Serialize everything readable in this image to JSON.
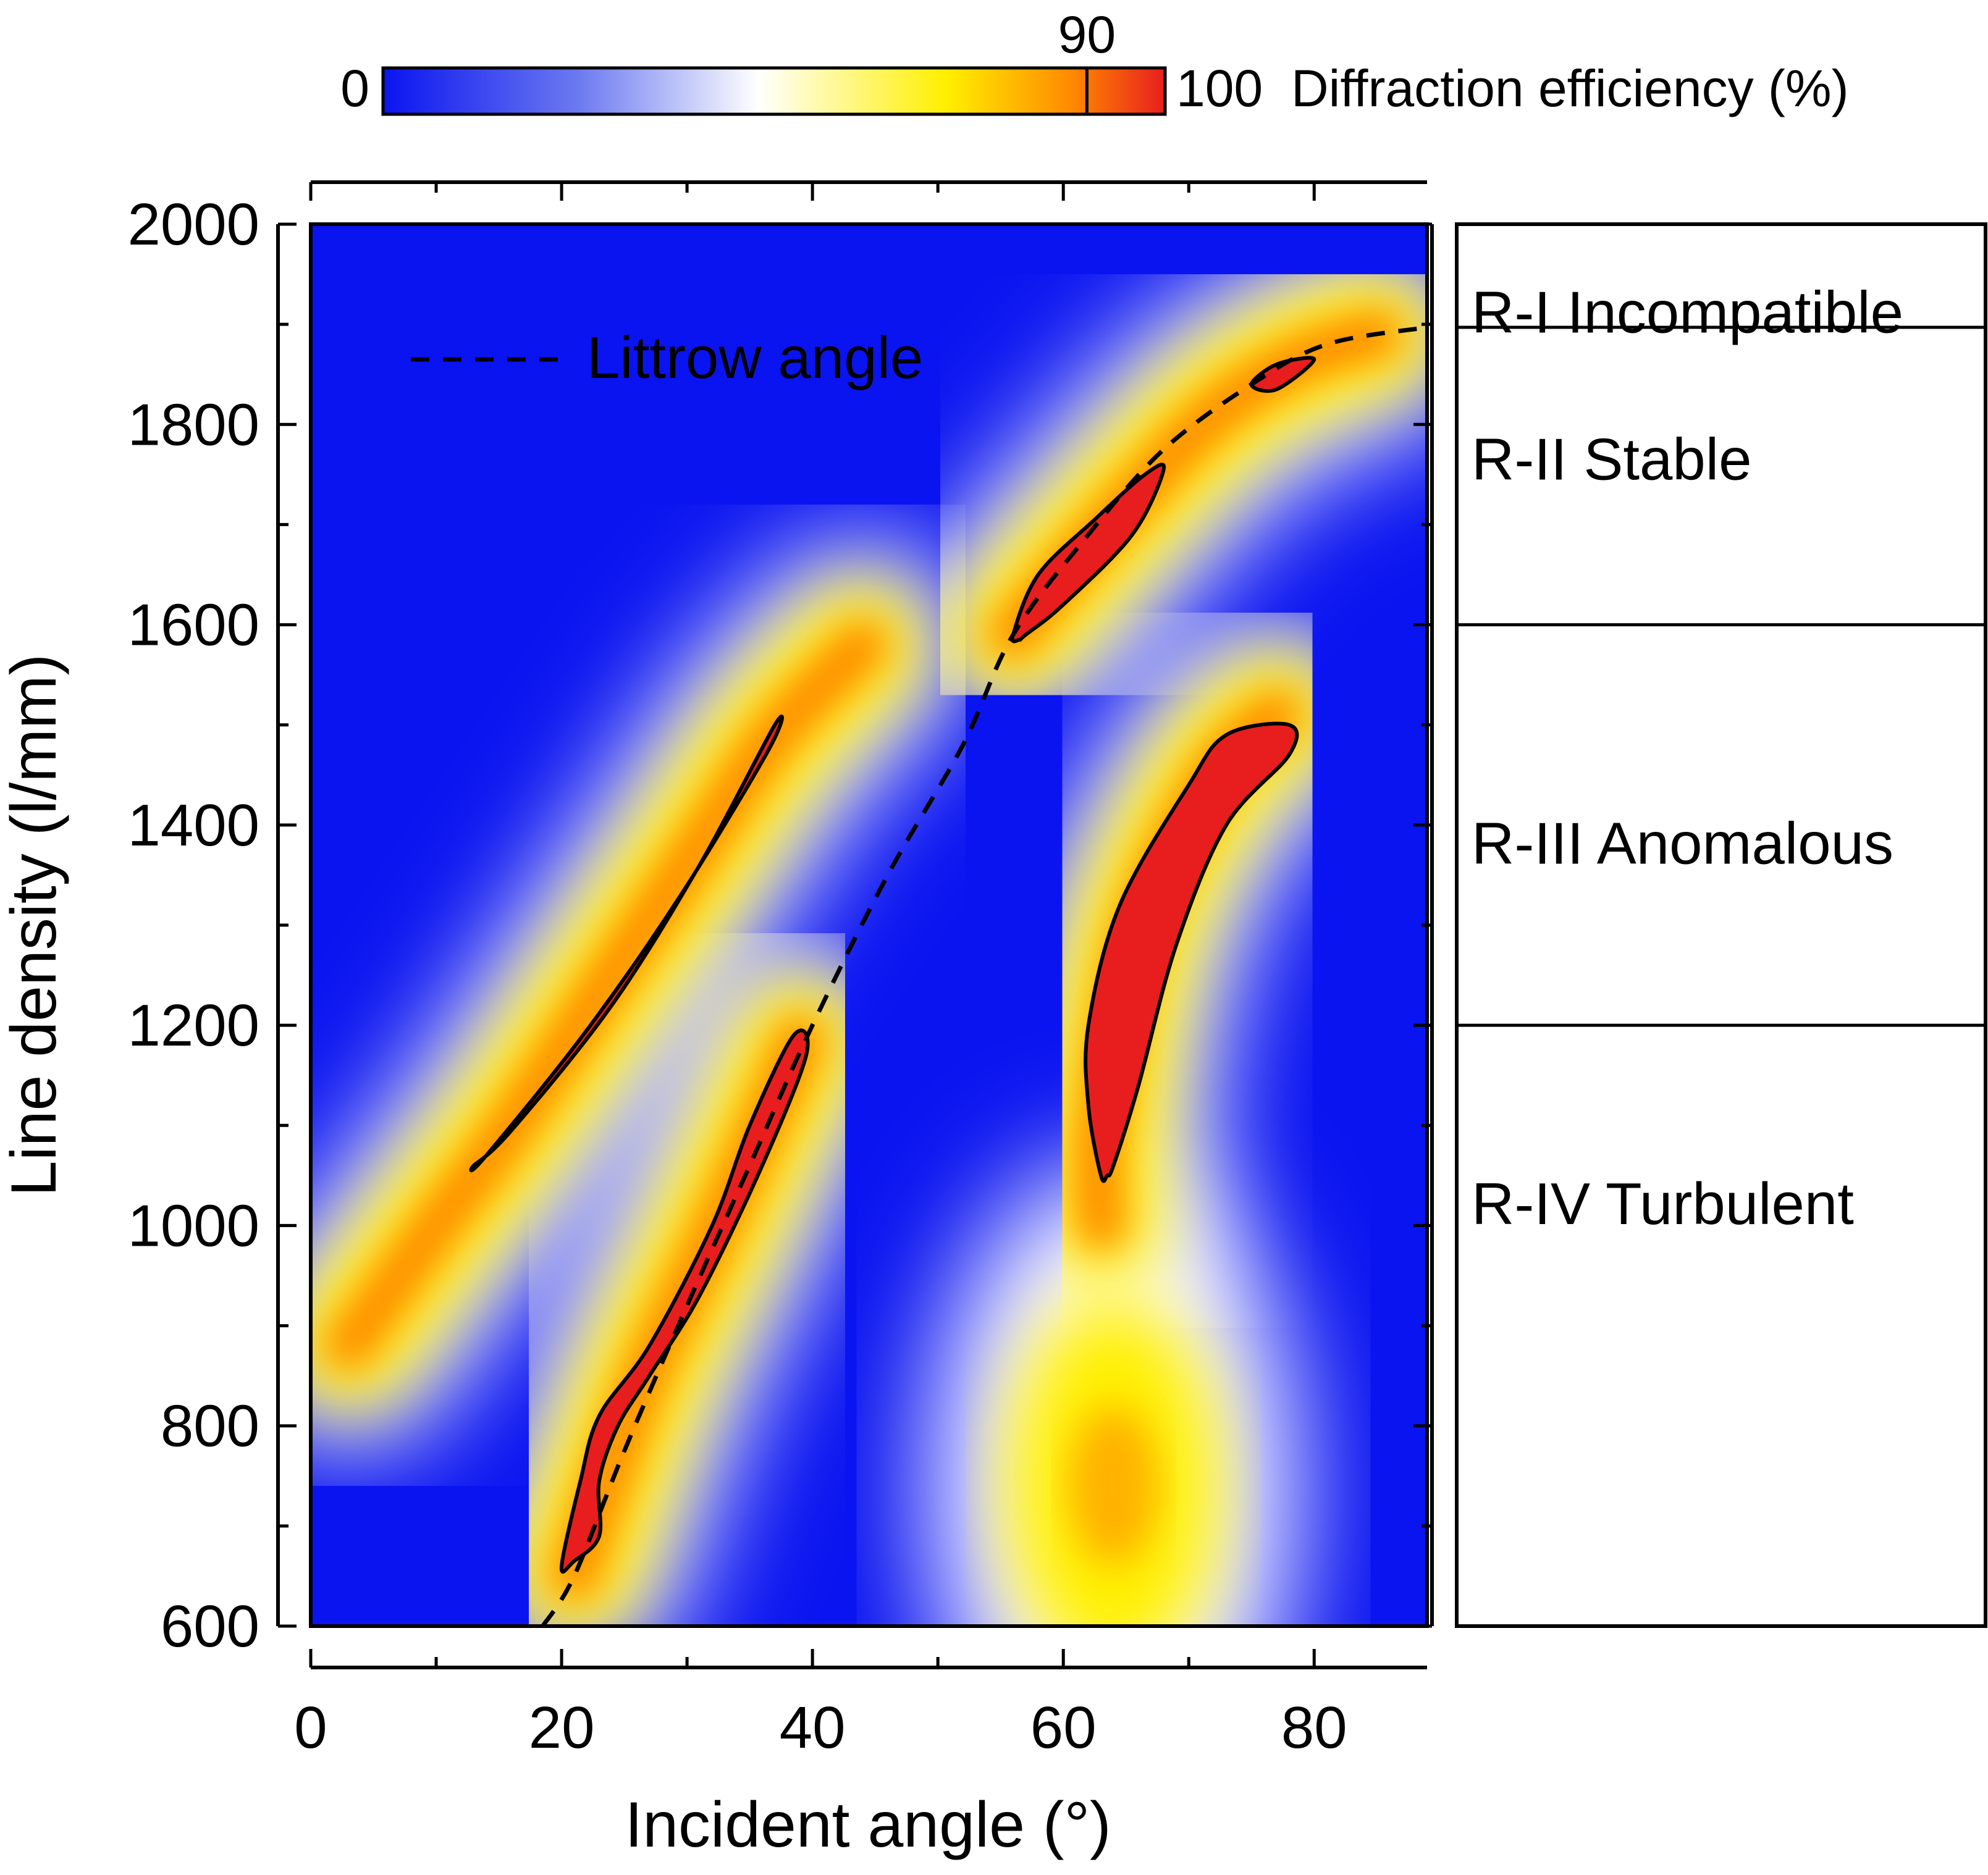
{
  "chart_data": {
    "type": "heatmap",
    "title": "",
    "xlabel": "Incident angle (°)",
    "ylabel": "Line density (l/mm)",
    "xlim": [
      0,
      89
    ],
    "ylim": [
      600,
      2000
    ],
    "x_ticks": [
      0,
      20,
      40,
      60,
      80
    ],
    "x_minor_step": 10,
    "y_ticks": [
      600,
      800,
      1000,
      1200,
      1400,
      1600,
      1800,
      2000
    ],
    "y_minor_step": 100,
    "colorbar": {
      "min_label": "0",
      "max_label": "100",
      "marker_value": 90,
      "marker_label": "90",
      "label": "Diffraction efficiency (%)",
      "stops": [
        {
          "value": 0,
          "color": "#0a14f0"
        },
        {
          "value": 25,
          "color": "#6c7af0"
        },
        {
          "value": 48,
          "color": "#ffffff"
        },
        {
          "value": 72,
          "color": "#ffef00"
        },
        {
          "value": 88,
          "color": "#ff8a00"
        },
        {
          "value": 100,
          "color": "#e81e1e"
        }
      ]
    },
    "contour_level": 90,
    "high_efficiency_bands": [
      {
        "name": "first-order band",
        "center": [
          [
            3,
            880
          ],
          [
            10,
            1000
          ],
          [
            16,
            1100
          ],
          [
            24,
            1250
          ],
          [
            31,
            1380
          ],
          [
            37,
            1490
          ],
          [
            44,
            1580
          ]
        ],
        "contour_90": [
          [
            13,
            1060
          ],
          [
            16,
            1095
          ],
          [
            24,
            1220
          ],
          [
            31,
            1360
          ],
          [
            37,
            1500
          ],
          [
            36.5,
            1475
          ],
          [
            29.5,
            1330
          ],
          [
            22,
            1195
          ],
          [
            14,
            1070
          ]
        ]
      },
      {
        "name": "Littrow band (low)",
        "center": [
          [
            21,
            650
          ],
          [
            24,
            760
          ],
          [
            27,
            860
          ],
          [
            32,
            990
          ],
          [
            36,
            1100
          ],
          [
            39,
            1185
          ]
        ],
        "contour_90": [
          [
            20,
            660
          ],
          [
            21.5,
            745
          ],
          [
            23,
            810
          ],
          [
            27,
            880
          ],
          [
            32,
            1000
          ],
          [
            35,
            1100
          ],
          [
            38.5,
            1190
          ],
          [
            39.5,
            1170
          ],
          [
            36,
            1060
          ],
          [
            31,
            930
          ],
          [
            27,
            850
          ],
          [
            24.5,
            800
          ],
          [
            23,
            745
          ],
          [
            23,
            690
          ],
          [
            21,
            665
          ]
        ]
      },
      {
        "name": "Littrow band (high)",
        "center": [
          [
            56,
            1590
          ],
          [
            60,
            1650
          ],
          [
            65,
            1720
          ],
          [
            72,
            1810
          ],
          [
            79,
            1865
          ],
          [
            85,
            1890
          ]
        ],
        "contour_90": [
          [
            56,
            1590
          ],
          [
            58,
            1650
          ],
          [
            62.5,
            1705
          ],
          [
            66.5,
            1750
          ],
          [
            68,
            1755
          ],
          [
            65.5,
            1690
          ],
          [
            60,
            1620
          ],
          [
            57,
            1590
          ],
          [
            56.5,
            1585
          ]
        ]
      },
      {
        "name": "Littrow band (top)",
        "contour_90": [
          [
            75,
            1840
          ],
          [
            77,
            1860
          ],
          [
            80,
            1865
          ],
          [
            77,
            1835
          ]
        ]
      },
      {
        "name": "second band",
        "center": [
          [
            63,
            1000
          ],
          [
            63,
            1100
          ],
          [
            66,
            1300
          ],
          [
            72,
            1450
          ],
          [
            77,
            1510
          ]
        ],
        "contour_90": [
          [
            63,
            1050
          ],
          [
            62,
            1120
          ],
          [
            62,
            1200
          ],
          [
            64.5,
            1320
          ],
          [
            70,
            1440
          ],
          [
            73,
            1490
          ],
          [
            78,
            1500
          ],
          [
            78,
            1470
          ],
          [
            73,
            1400
          ],
          [
            69,
            1280
          ],
          [
            66,
            1140
          ],
          [
            64,
            1060
          ],
          [
            63.5,
            1050
          ]
        ]
      },
      {
        "name": "lower lobe",
        "center": [
          [
            64,
            740
          ]
        ],
        "value": 80
      }
    ],
    "littrow_line": [
      [
        18.5,
        600
      ],
      [
        21,
        650
      ],
      [
        25,
        775
      ],
      [
        30,
        920
      ],
      [
        35,
        1060
      ],
      [
        40,
        1200
      ],
      [
        46,
        1350
      ],
      [
        52,
        1480
      ],
      [
        56,
        1590
      ],
      [
        62,
        1690
      ],
      [
        68,
        1775
      ],
      [
        75,
        1840
      ],
      [
        81,
        1880
      ],
      [
        89,
        1897
      ]
    ],
    "legend": {
      "entries": [
        "Littrow angle"
      ],
      "position": "top-left"
    },
    "regions": [
      {
        "label": "R-I Incompatible",
        "y_range": [
          1897,
          2000
        ]
      },
      {
        "label": "R-II Stable",
        "y_range": [
          1600,
          1897
        ]
      },
      {
        "label": "R-III Anomalous",
        "y_range": [
          1200,
          1600
        ]
      },
      {
        "label": "R-IV Turbulent",
        "y_range": [
          600,
          1200
        ]
      }
    ]
  }
}
